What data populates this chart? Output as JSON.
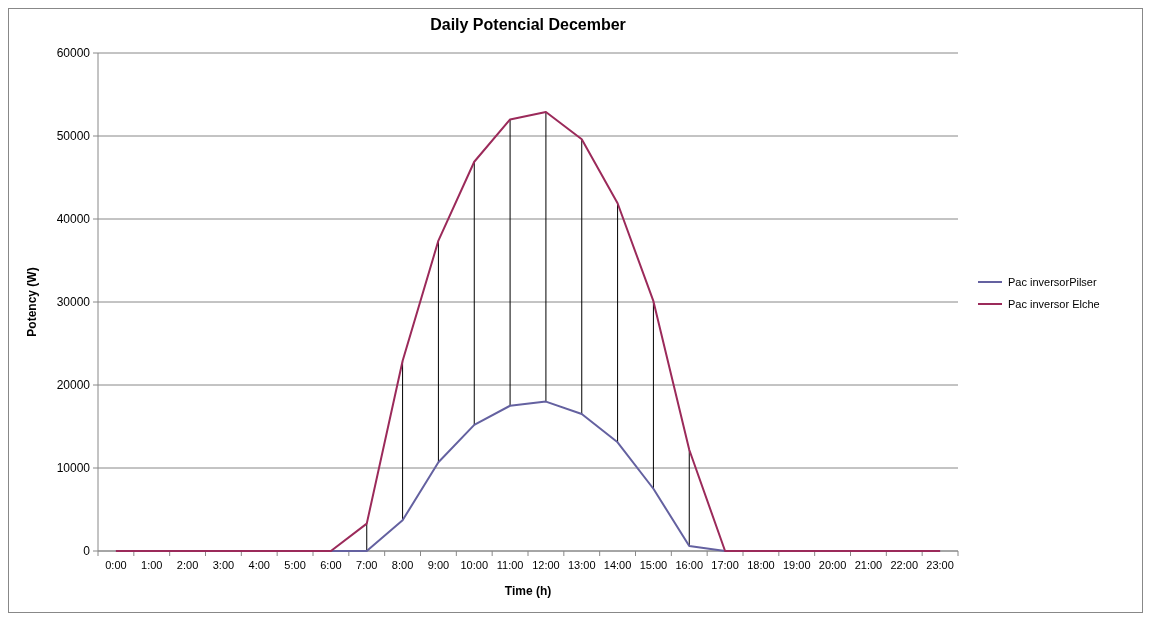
{
  "chart_data": {
    "type": "line",
    "title": "Daily Potencial December",
    "xlabel": "Time (h)",
    "ylabel": "Potency (W)",
    "categories": [
      "0:00",
      "1:00",
      "2:00",
      "3:00",
      "4:00",
      "5:00",
      "6:00",
      "7:00",
      "8:00",
      "9:00",
      "10:00",
      "11:00",
      "12:00",
      "13:00",
      "14:00",
      "15:00",
      "16:00",
      "17:00",
      "18:00",
      "19:00",
      "20:00",
      "21:00",
      "22:00",
      "23:00"
    ],
    "series": [
      {
        "name": "Pac inversorPilser",
        "color": "#6461a0",
        "values": [
          0,
          0,
          0,
          0,
          0,
          0,
          0,
          0,
          3700,
          10700,
          15200,
          17500,
          18000,
          16500,
          13100,
          7500,
          600,
          0,
          0,
          0,
          0,
          0,
          0,
          0
        ]
      },
      {
        "name": "Pac inversor Elche",
        "color": "#9b2a5a",
        "values": [
          0,
          0,
          0,
          0,
          0,
          0,
          0,
          3300,
          22900,
          37400,
          46900,
          52000,
          52900,
          49600,
          41900,
          30100,
          12200,
          0,
          0,
          0,
          0,
          0,
          0,
          0
        ]
      }
    ],
    "ylim": [
      0,
      60000
    ],
    "yticks": [
      0,
      10000,
      20000,
      30000,
      40000,
      50000,
      60000
    ],
    "grid": "y",
    "legend": "right",
    "marker": "none",
    "line_style": "solid"
  }
}
